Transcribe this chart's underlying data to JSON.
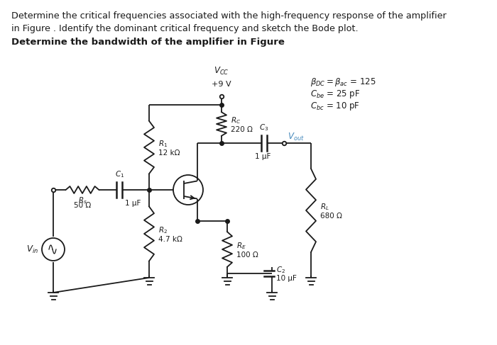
{
  "bg_color": "#ffffff",
  "text_color": "#1a1a1a",
  "cc": "#1a1a1a",
  "blue": "#4488bb",
  "title1": "Determine the critical frequencies associated with the high-frequency response of the amplifier",
  "title2": "in Figure . Identify the dominant critical frequency and sketch the Bode plot.",
  "title3": "Determine the bandwidth of the amplifier in Figure"
}
